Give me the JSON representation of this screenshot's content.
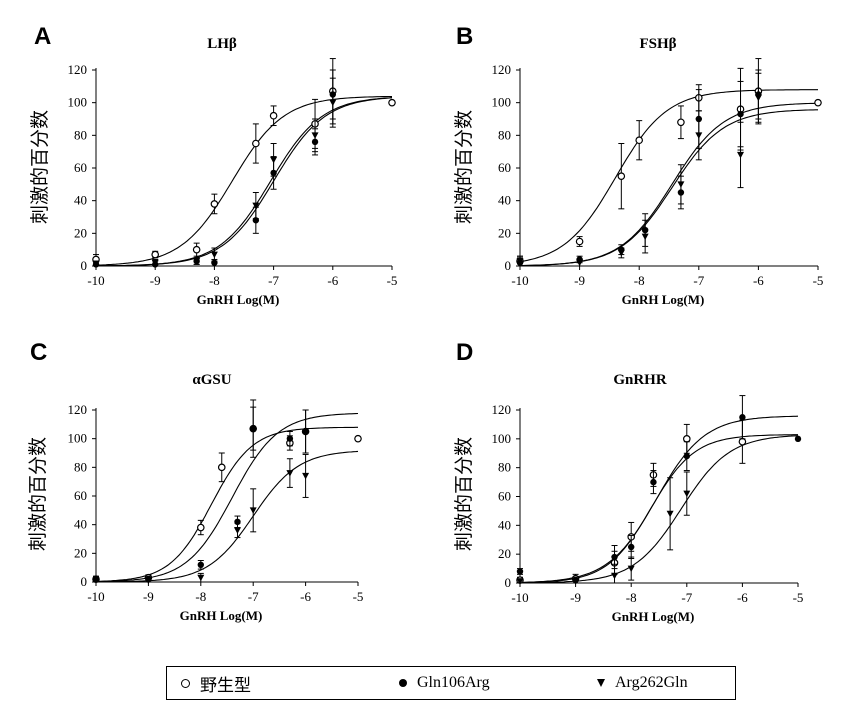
{
  "legend": {
    "items": [
      {
        "label": "野生型",
        "marker": "open-circle"
      },
      {
        "label": "Gln106Arg",
        "marker": "filled-circle"
      },
      {
        "label": "Arg262Gln",
        "marker": "filled-triangle-down"
      }
    ]
  },
  "chart_data": [
    {
      "panel": "A",
      "type": "scatter",
      "title": "LHβ",
      "xlabel": "GnRH Log(M)",
      "ylabel": "刺激的百分数",
      "xlim": [
        -10,
        -5
      ],
      "ylim": [
        0,
        120
      ],
      "xticks": [
        "-10",
        "-9",
        "-8",
        "-7",
        "-6",
        "-5"
      ],
      "yticks": [
        "0",
        "20",
        "40",
        "60",
        "80",
        "100",
        "120"
      ],
      "series": [
        {
          "name": "野生型",
          "marker": "open-circle",
          "x": [
            -10,
            -9,
            -8.3,
            -8,
            -7.3,
            -7,
            -6.3,
            -6,
            -5
          ],
          "y": [
            4,
            7,
            10,
            38,
            75,
            92,
            87,
            107,
            100
          ],
          "err": [
            3,
            2,
            4,
            6,
            12,
            6,
            15,
            20,
            0
          ],
          "fit": {
            "bottom": 0,
            "top": 104,
            "ec50": -7.7,
            "hill": 1.0
          }
        },
        {
          "name": "Gln106Arg",
          "marker": "filled-circle",
          "x": [
            -10,
            -9,
            -8.3,
            -8,
            -7.3,
            -7,
            -6.3,
            -6
          ],
          "y": [
            1,
            1,
            3,
            2,
            28,
            57,
            76,
            105
          ],
          "err": [
            2,
            2,
            2,
            2,
            8,
            10,
            8,
            15
          ],
          "fit": {
            "bottom": 0,
            "top": 104,
            "ec50": -7.05,
            "hill": 1.0
          }
        },
        {
          "name": "Arg262Gln",
          "marker": "filled-triangle-down",
          "x": [
            -10,
            -9,
            -8.3,
            -8,
            -7.3,
            -7,
            -6.3,
            -6
          ],
          "y": [
            1,
            2,
            3,
            7,
            37,
            65,
            80,
            100
          ],
          "err": [
            2,
            2,
            2,
            4,
            8,
            10,
            10,
            15
          ],
          "fit": {
            "bottom": 0,
            "top": 104,
            "ec50": -7.0,
            "hill": 1.0
          }
        }
      ]
    },
    {
      "panel": "B",
      "type": "scatter",
      "title": "FSHβ",
      "xlabel": "GnRH Log(M)",
      "ylabel": "刺激的百分数",
      "xlim": [
        -10,
        -5
      ],
      "ylim": [
        0,
        120
      ],
      "xticks": [
        "-10",
        "-9",
        "-8",
        "-7",
        "-6",
        "-5"
      ],
      "yticks": [
        "0",
        "20",
        "40",
        "60",
        "80",
        "100",
        "120"
      ],
      "series": [
        {
          "name": "野生型",
          "marker": "open-circle",
          "x": [
            -10,
            -9,
            -8.3,
            -8,
            -7.3,
            -7,
            -6.3,
            -6,
            -5
          ],
          "y": [
            3,
            15,
            55,
            77,
            88,
            103,
            96,
            107,
            100
          ],
          "err": [
            3,
            3,
            20,
            12,
            10,
            8,
            25,
            20,
            0
          ],
          "fit": {
            "bottom": 0,
            "top": 108,
            "ec50": -8.4,
            "hill": 1.0
          }
        },
        {
          "name": "Gln106Arg",
          "marker": "filled-circle",
          "x": [
            -10,
            -9,
            -8.3,
            -7.9,
            -7.3,
            -7,
            -6.3,
            -6
          ],
          "y": [
            2,
            4,
            10,
            22,
            45,
            90,
            93,
            105
          ],
          "err": [
            3,
            2,
            3,
            10,
            10,
            18,
            20,
            15
          ],
          "fit": {
            "bottom": 0,
            "top": 100,
            "ec50": -7.45,
            "hill": 1.0
          }
        },
        {
          "name": "Arg262Gln",
          "marker": "filled-triangle-down",
          "x": [
            -10,
            -9,
            -8.3,
            -7.9,
            -7.3,
            -7,
            -6.3,
            -6
          ],
          "y": [
            3,
            2,
            8,
            18,
            50,
            80,
            68,
            103
          ],
          "err": [
            3,
            2,
            3,
            10,
            12,
            15,
            20,
            15
          ],
          "fit": {
            "bottom": 0,
            "top": 96,
            "ec50": -7.45,
            "hill": 1.0
          }
        }
      ]
    },
    {
      "panel": "C",
      "type": "scatter",
      "title": "αGSU",
      "xlabel": "GnRH Log(M)",
      "ylabel": "刺激的百分数",
      "xlim": [
        -10,
        -5
      ],
      "ylim": [
        0,
        120
      ],
      "xticks": [
        "-10",
        "-9",
        "-8",
        "-7",
        "-6",
        "-5"
      ],
      "yticks": [
        "0",
        "20",
        "40",
        "60",
        "80",
        "100",
        "120"
      ],
      "series": [
        {
          "name": "野生型",
          "marker": "open-circle",
          "x": [
            -10,
            -9,
            -8,
            -7.6,
            -7,
            -6.3,
            -6,
            -5
          ],
          "y": [
            2,
            3,
            38,
            80,
            107,
            97,
            105,
            100
          ],
          "err": [
            2,
            2,
            5,
            10,
            20,
            5,
            15,
            0
          ],
          "fit": {
            "bottom": 0,
            "top": 108,
            "ec50": -7.8,
            "hill": 1.1
          }
        },
        {
          "name": "Gln106Arg",
          "marker": "filled-circle",
          "x": [
            -10,
            -9,
            -8,
            -7.3,
            -7,
            -6.3,
            -6
          ],
          "y": [
            2,
            2,
            12,
            42,
            107,
            100,
            105
          ],
          "err": [
            2,
            2,
            3,
            4,
            15,
            5,
            15
          ],
          "fit": {
            "bottom": 0,
            "top": 118,
            "ec50": -7.4,
            "hill": 1.0
          }
        },
        {
          "name": "Arg262Gln",
          "marker": "filled-triangle-down",
          "x": [
            -10,
            -9,
            -8,
            -7.3,
            -7,
            -6.3,
            -6
          ],
          "y": [
            1,
            1,
            3,
            36,
            50,
            76,
            74
          ],
          "err": [
            2,
            2,
            3,
            5,
            15,
            10,
            15
          ],
          "fit": {
            "bottom": 0,
            "top": 92,
            "ec50": -7.0,
            "hill": 1.0
          }
        }
      ]
    },
    {
      "panel": "D",
      "type": "scatter",
      "title": "GnRHR",
      "xlabel": "GnRH Log(M)",
      "ylabel": "刺激的百分数",
      "xlim": [
        -10,
        -5
      ],
      "ylim": [
        0,
        120
      ],
      "xticks": [
        "-10",
        "-9",
        "-8",
        "-7",
        "-6",
        "-5"
      ],
      "yticks": [
        "0",
        "20",
        "40",
        "60",
        "80",
        "100",
        "120"
      ],
      "series": [
        {
          "name": "野生型",
          "marker": "open-circle",
          "x": [
            -10,
            -9,
            -8.3,
            -8,
            -7.6,
            -7,
            -6
          ],
          "y": [
            2,
            3,
            14,
            32,
            75,
            100,
            98
          ],
          "err": [
            2,
            3,
            8,
            10,
            8,
            10,
            15
          ],
          "fit": {
            "bottom": 0,
            "top": 103,
            "ec50": -7.65,
            "hill": 1.1
          }
        },
        {
          "name": "Gln106Arg",
          "marker": "filled-circle",
          "x": [
            -10,
            -9,
            -8.3,
            -8,
            -7.6,
            -7,
            -6,
            -5
          ],
          "y": [
            8,
            2,
            18,
            25,
            70,
            88,
            115,
            100
          ],
          "err": [
            2,
            2,
            8,
            8,
            8,
            10,
            15,
            0
          ],
          "fit": {
            "bottom": 0,
            "top": 116,
            "ec50": -7.55,
            "hill": 1.0
          }
        },
        {
          "name": "Arg262Gln",
          "marker": "filled-triangle-down",
          "x": [
            -10,
            -9,
            -8.3,
            -8,
            -7.3,
            -7
          ],
          "y": [
            1,
            1,
            5,
            10,
            48,
            62
          ],
          "err": [
            2,
            2,
            8,
            8,
            25,
            15
          ],
          "fit": {
            "bottom": 0,
            "top": 103,
            "ec50": -7.1,
            "hill": 1.0
          }
        }
      ]
    }
  ]
}
